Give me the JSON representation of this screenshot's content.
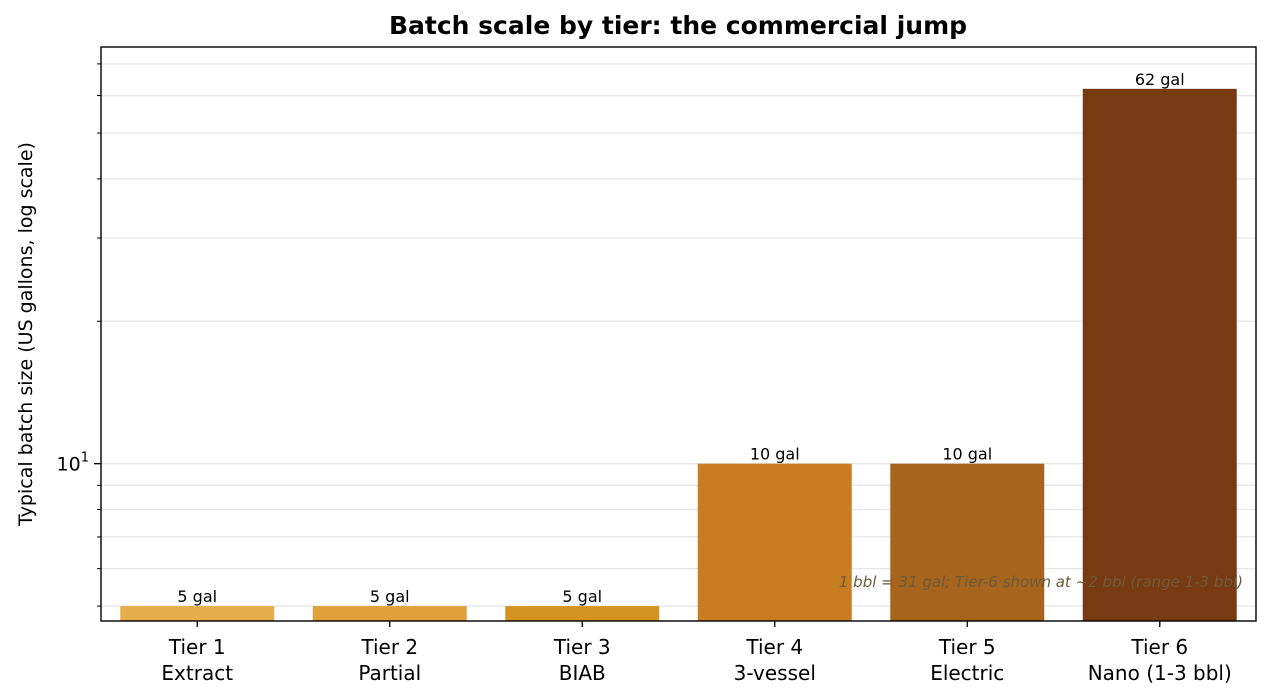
{
  "chart_data": {
    "type": "bar",
    "title": "Batch scale by tier: the commercial jump",
    "xlabel": "",
    "ylabel": "Typical batch size (US gallons, log scale)",
    "yscale": "log",
    "ylim": [
      4.65,
      76
    ],
    "y_tick_label": {
      "base": "10",
      "exp": "1"
    },
    "grid": "horizontal",
    "categories": [
      {
        "line1": "Tier 1",
        "line2": "Extract"
      },
      {
        "line1": "Tier 2",
        "line2": "Partial"
      },
      {
        "line1": "Tier 3",
        "line2": "BIAB"
      },
      {
        "line1": "Tier 4",
        "line2": "3-vessel"
      },
      {
        "line1": "Tier 5",
        "line2": "Electric"
      },
      {
        "line1": "Tier 6",
        "line2": "Nano (1-3 bbl)"
      }
    ],
    "values": [
      5,
      5,
      5,
      10,
      10,
      62
    ],
    "data_labels": [
      "5 gal",
      "5 gal",
      "5 gal",
      "10 gal",
      "10 gal",
      "62 gal"
    ],
    "colors": [
      "#e6ad4b",
      "#e0a03a",
      "#d69320",
      "#c87e20",
      "#a6641d",
      "#783a12"
    ],
    "annotation": "1 bbl = 31 gal; Tier-6 shown at ~2 bbl (range 1-3 bbl)"
  }
}
